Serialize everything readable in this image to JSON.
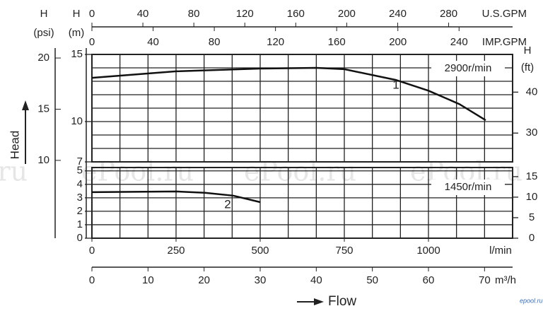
{
  "chart_data": [
    {
      "type": "line",
      "annotation": "2900r/min",
      "x": [
        0,
        250,
        500,
        667,
        750,
        903,
        1000,
        1092,
        1170
      ],
      "series": [
        {
          "name": "1",
          "color": "#111111",
          "values": [
            13.26,
            13.74,
            13.95,
            14.0,
            13.9,
            13.1,
            12.3,
            11.3,
            10.1
          ]
        }
      ],
      "xlim": [
        0,
        1250
      ],
      "xgrid": [
        0,
        83.3,
        166.7,
        250,
        333.3,
        416.7,
        500,
        583.3,
        666.7,
        750,
        833.3,
        916.7,
        1000,
        1083.3,
        1166.7,
        1250
      ],
      "ylim": [
        7,
        15
      ],
      "yticks": [
        7,
        10,
        15
      ],
      "ygrid": [
        7,
        8,
        9,
        10,
        11,
        12,
        13,
        14,
        15
      ],
      "y2lim": [
        22.97,
        49.21
      ],
      "y2ticks": [
        30,
        40
      ]
    },
    {
      "type": "line",
      "annotation": "1450r/min",
      "x": [
        0,
        250,
        336,
        420,
        500
      ],
      "series": [
        {
          "name": "2",
          "color": "#111111",
          "values": [
            3.42,
            3.47,
            3.37,
            3.16,
            2.68
          ]
        }
      ],
      "xlim": [
        0,
        1250
      ],
      "xticks": [
        0,
        250,
        500,
        750,
        1000
      ],
      "xlabel": "l/min",
      "xgrid": [
        0,
        83.3,
        166.7,
        250,
        333.3,
        416.7,
        500,
        583.3,
        666.7,
        750,
        833.3,
        916.7,
        1000,
        1083.3,
        1166.7,
        1250
      ],
      "ylim": [
        0,
        5.25
      ],
      "yticks": [
        0,
        1,
        2,
        3,
        4,
        5
      ],
      "y2lim": [
        0,
        17.22
      ],
      "y2ticks": [
        0,
        5,
        10,
        15
      ]
    }
  ],
  "y_title": "Head",
  "x_title": "Flow",
  "y_axes": {
    "psi": {
      "title": "H",
      "unit": "(psi)",
      "lim": [
        2.4,
        20.35
      ],
      "ticks": [
        10,
        15,
        20
      ]
    },
    "m": {
      "title": "H",
      "unit": "(m)"
    },
    "ft": {
      "title": "H",
      "unit": "(ft)"
    }
  },
  "flow_axes": {
    "us_gpm": {
      "label": "U.S.GPM",
      "lim": [
        0,
        330.2
      ],
      "ticks": [
        0,
        40,
        80,
        120,
        160,
        200,
        240,
        280
      ]
    },
    "imp_gpm": {
      "label": "IMP.GPM",
      "lim": [
        0,
        275
      ],
      "ticks": [
        0,
        40,
        80,
        120,
        160,
        200,
        240
      ]
    },
    "m3h": {
      "label": "m³/h",
      "lim": [
        0,
        75
      ],
      "ticks": [
        0,
        10,
        20,
        30,
        40,
        50,
        60,
        70
      ]
    }
  },
  "watermarks": [
    "ePool.ru",
    "ePool.ru",
    "ePool.ru",
    "ePool.ru"
  ],
  "credit": "epool.ru"
}
